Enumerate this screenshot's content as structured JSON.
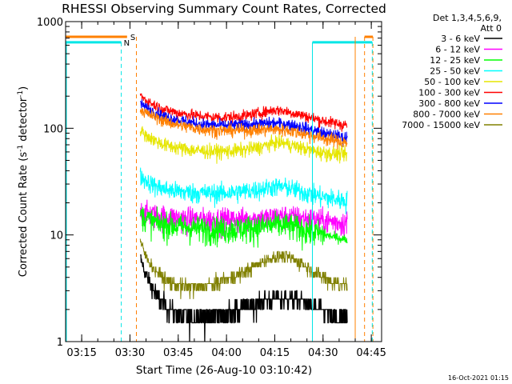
{
  "chart_data": {
    "type": "line",
    "title": "RHESSI Observing Summary Count Rates, Corrected",
    "xlabel": "Start Time (26-Aug-10 03:10:42)",
    "ylabel_main": "Corrected Count Rate (s",
    "ylabel_sup1": "-1",
    "ylabel_mid": " detector",
    "ylabel_sup2": "-1",
    "ylabel_end": ")",
    "x_range_minutes": [
      -0.7,
      97.5
    ],
    "y_range": [
      1,
      1000
    ],
    "y_scale": "log",
    "xticks": [
      {
        "label": "03:15",
        "t": 4.3
      },
      {
        "label": "03:30",
        "t": 19.3
      },
      {
        "label": "03:45",
        "t": 34.3
      },
      {
        "label": "04:00",
        "t": 49.3
      },
      {
        "label": "04:15",
        "t": 64.3
      },
      {
        "label": "04:30",
        "t": 79.3
      },
      {
        "label": "04:45",
        "t": 94.3
      }
    ],
    "yticks": [
      {
        "label": "1",
        "value": 1
      },
      {
        "label": "10",
        "value": 10
      },
      {
        "label": "100",
        "value": 100
      },
      {
        "label": "1000",
        "value": 1000
      }
    ],
    "legend_header": [
      "Det 1,3,4,5,6,9,",
      "Att 0"
    ],
    "legend_position": "right",
    "markers": {
      "S": {
        "label": "S",
        "color": "#ff8000",
        "y": 720,
        "segments": [
          [
            -0.7,
            18.4
          ],
          [
            92.2,
            94.8
          ]
        ],
        "vlines": [
          21.3,
          92.2,
          94.8
        ]
      },
      "N": {
        "label": "N",
        "color": "#00e6e6",
        "y": 640,
        "segments": [
          [
            -0.7,
            16.6
          ],
          [
            76.0,
            94.6
          ]
        ],
        "vlines": [
          16.6,
          94.6
        ],
        "solid_vlines": [
          76.0
        ]
      },
      "night_bounds": {
        "color": "#00e6e6",
        "vlines": [
          -0.7,
          76.0
        ]
      },
      "data_gap_bounds": {
        "color": "#ff8000",
        "vlines": [
          89.3
        ]
      }
    },
    "series": [
      {
        "name": "3 - 6 keV",
        "color": "#000000",
        "start": 22.5,
        "end": 86.8,
        "points": [
          [
            22.5,
            6.2
          ],
          [
            24,
            4.4
          ],
          [
            26,
            3.4
          ],
          [
            28,
            2.6
          ],
          [
            30,
            2.2
          ],
          [
            33,
            1.9
          ],
          [
            37,
            1.7
          ],
          [
            42,
            1.7
          ],
          [
            48,
            1.8
          ],
          [
            53,
            2.0
          ],
          [
            58,
            2.3
          ],
          [
            62,
            2.5
          ],
          [
            66,
            2.6
          ],
          [
            70,
            2.5
          ],
          [
            74,
            2.3
          ],
          [
            76,
            2.1
          ],
          [
            80,
            1.9
          ],
          [
            84,
            1.7
          ],
          [
            86.8,
            1.6
          ]
        ]
      },
      {
        "name": "6 - 12 keV",
        "color": "#ff00ff",
        "start": 22.5,
        "end": 86.8,
        "points": [
          [
            22.5,
            17
          ],
          [
            25,
            16
          ],
          [
            28,
            15.2
          ],
          [
            32,
            14.7
          ],
          [
            37,
            14.2
          ],
          [
            42,
            14.0
          ],
          [
            48,
            14.0
          ],
          [
            53,
            14.0
          ],
          [
            58,
            14.2
          ],
          [
            62,
            14.5
          ],
          [
            66,
            15.0
          ],
          [
            70,
            14.8
          ],
          [
            74,
            14.3
          ],
          [
            78,
            13.8
          ],
          [
            82,
            13.4
          ],
          [
            86.8,
            13.0
          ]
        ]
      },
      {
        "name": "12 - 25 keV",
        "color": "#00ff00",
        "start": 22.5,
        "end": 86.8,
        "points": [
          [
            22.5,
            16
          ],
          [
            24,
            14.5
          ],
          [
            27,
            13.2
          ],
          [
            30,
            12.6
          ],
          [
            35,
            12.0
          ],
          [
            40,
            11.6
          ],
          [
            45,
            11.4
          ],
          [
            50,
            11.4
          ],
          [
            55,
            11.6
          ],
          [
            60,
            12.0
          ],
          [
            64,
            12.5
          ],
          [
            68,
            12.3
          ],
          [
            72,
            11.6
          ],
          [
            76,
            10.8
          ],
          [
            80,
            10.0
          ],
          [
            84,
            9.4
          ],
          [
            86.8,
            9.0
          ]
        ]
      },
      {
        "name": "25 - 50 keV",
        "color": "#00ffff",
        "start": 22.5,
        "end": 86.8,
        "points": [
          [
            22.5,
            36
          ],
          [
            24,
            33
          ],
          [
            27,
            29
          ],
          [
            30,
            27
          ],
          [
            35,
            25.5
          ],
          [
            40,
            25
          ],
          [
            45,
            24.7
          ],
          [
            50,
            25
          ],
          [
            55,
            25.8
          ],
          [
            60,
            27
          ],
          [
            64,
            28.5
          ],
          [
            68,
            28
          ],
          [
            72,
            26
          ],
          [
            76,
            24
          ],
          [
            80,
            22.5
          ],
          [
            84,
            21.5
          ],
          [
            86.8,
            21
          ]
        ]
      },
      {
        "name": "50 - 100 keV",
        "color": "#e6e600",
        "start": 22.5,
        "end": 86.8,
        "points": [
          [
            22.5,
            97
          ],
          [
            24,
            87
          ],
          [
            27,
            77
          ],
          [
            30,
            70
          ],
          [
            35,
            65
          ],
          [
            40,
            62
          ],
          [
            45,
            61
          ],
          [
            50,
            61
          ],
          [
            55,
            63
          ],
          [
            60,
            67
          ],
          [
            64,
            73
          ],
          [
            66,
            74
          ],
          [
            70,
            69
          ],
          [
            74,
            64
          ],
          [
            78,
            60
          ],
          [
            82,
            58
          ],
          [
            86.8,
            57
          ]
        ]
      },
      {
        "name": "100 - 300 keV",
        "color": "#ff0000",
        "start": 22.5,
        "end": 86.8,
        "points": [
          [
            22.5,
            205
          ],
          [
            24,
            185
          ],
          [
            27,
            165
          ],
          [
            30,
            150
          ],
          [
            35,
            138
          ],
          [
            40,
            132
          ],
          [
            45,
            127
          ],
          [
            50,
            127
          ],
          [
            55,
            131
          ],
          [
            60,
            140
          ],
          [
            64,
            148
          ],
          [
            66,
            148
          ],
          [
            70,
            139
          ],
          [
            74,
            130
          ],
          [
            78,
            120
          ],
          [
            82,
            113
          ],
          [
            86.8,
            107
          ]
        ]
      },
      {
        "name": "300 - 800 keV",
        "color": "#0000ff",
        "start": 22.5,
        "end": 86.8,
        "points": [
          [
            22.5,
            172
          ],
          [
            24,
            158
          ],
          [
            27,
            142
          ],
          [
            30,
            130
          ],
          [
            35,
            118
          ],
          [
            40,
            111
          ],
          [
            45,
            107
          ],
          [
            50,
            106
          ],
          [
            55,
            108
          ],
          [
            60,
            110
          ],
          [
            64,
            112
          ],
          [
            68,
            110
          ],
          [
            72,
            104
          ],
          [
            76,
            96
          ],
          [
            80,
            89
          ],
          [
            84,
            84
          ],
          [
            86.8,
            81
          ]
        ]
      },
      {
        "name": "800 - 7000 keV",
        "color": "#ff8000",
        "start": 22.5,
        "end": 86.8,
        "points": [
          [
            22.5,
            152
          ],
          [
            24,
            140
          ],
          [
            27,
            128
          ],
          [
            30,
            117
          ],
          [
            35,
            106
          ],
          [
            40,
            100
          ],
          [
            45,
            96
          ],
          [
            50,
            95
          ],
          [
            55,
            96
          ],
          [
            60,
            97
          ],
          [
            64,
            98
          ],
          [
            68,
            96
          ],
          [
            72,
            91
          ],
          [
            76,
            85
          ],
          [
            80,
            80
          ],
          [
            84,
            76
          ],
          [
            86.8,
            74
          ]
        ]
      },
      {
        "name": "7000 - 15000 keV",
        "color": "#808000",
        "start": 22.5,
        "end": 86.8,
        "points": [
          [
            22.5,
            8.8
          ],
          [
            24,
            6.5
          ],
          [
            26,
            5.2
          ],
          [
            28,
            4.4
          ],
          [
            31,
            3.7
          ],
          [
            35,
            3.3
          ],
          [
            40,
            3.2
          ],
          [
            45,
            3.4
          ],
          [
            50,
            3.9
          ],
          [
            55,
            4.6
          ],
          [
            60,
            5.5
          ],
          [
            64,
            6.2
          ],
          [
            68,
            6.3
          ],
          [
            70,
            6.0
          ],
          [
            74,
            5.0
          ],
          [
            78,
            4.2
          ],
          [
            82,
            3.7
          ],
          [
            86.8,
            3.4
          ]
        ]
      }
    ]
  },
  "footer_date": "16-Oct-2021 01:15"
}
